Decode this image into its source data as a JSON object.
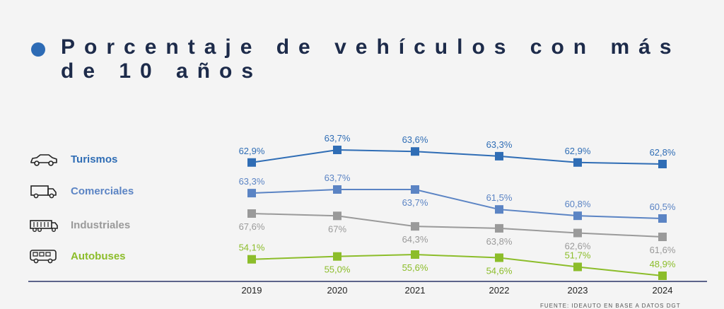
{
  "title": "Porcentaje de vehículos con más de 10 años",
  "footer": "FUENTE: IDEAUTO EN BASE A DATOS DGT",
  "colors": {
    "turismos": "#2f6db5",
    "comerciales": "#5b84c4",
    "industriales": "#9a9a9a",
    "autobuses": "#8cbd2a",
    "axis": "#2a3566"
  },
  "legend": [
    {
      "key": "turismos",
      "label": "Turismos",
      "icon": "car-icon"
    },
    {
      "key": "comerciales",
      "label": "Comerciales",
      "icon": "truck-icon"
    },
    {
      "key": "industriales",
      "label": "Industriales",
      "icon": "industrial-truck-icon"
    },
    {
      "key": "autobuses",
      "label": "Autobuses",
      "icon": "bus-icon"
    }
  ],
  "chart_data": {
    "type": "line",
    "title": "Porcentaje de vehículos con más de 10 años",
    "categories": [
      "2019",
      "2020",
      "2021",
      "2022",
      "2023",
      "2024"
    ],
    "series": [
      {
        "name": "Turismos",
        "key": "turismos",
        "values": [
          62.9,
          63.7,
          63.6,
          63.3,
          62.9,
          62.8
        ],
        "labels": [
          "62,9%",
          "63,7%",
          "63,6%",
          "63,3%",
          "62,9%",
          "62,8%"
        ]
      },
      {
        "name": "Comerciales",
        "key": "comerciales",
        "values": [
          63.3,
          63.7,
          63.7,
          61.5,
          60.8,
          60.5
        ],
        "labels": [
          "63,3%",
          "63,7%",
          "63,7%",
          "61,5%",
          "60,8%",
          "60,5%"
        ]
      },
      {
        "name": "Industriales",
        "key": "industriales",
        "values": [
          67.6,
          67,
          64.3,
          63.8,
          62.6,
          61.6
        ],
        "labels": [
          "67,6%",
          "67%",
          "64,3%",
          "63,8%",
          "62,6%",
          "61,6%"
        ]
      },
      {
        "name": "Autobuses",
        "key": "autobuses",
        "values": [
          54.1,
          55.0,
          55.6,
          54.6,
          51.7,
          48.9
        ],
        "labels": [
          "54,1%",
          "55,0%",
          "55,6%",
          "54,6%",
          "51,7%",
          "48,9%"
        ]
      }
    ],
    "xlabel": "",
    "ylabel": ""
  }
}
